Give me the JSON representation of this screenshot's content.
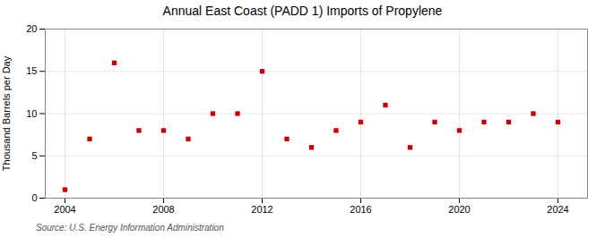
{
  "chart_data": {
    "type": "scatter",
    "title": "Annual East Coast (PADD 1) Imports of Propylene",
    "ylabel": "Thousand Barrels per Day",
    "source": "Source: U.S. Energy Information Administration",
    "x": [
      2004,
      2005,
      2006,
      2007,
      2008,
      2009,
      2010,
      2011,
      2012,
      2013,
      2014,
      2015,
      2016,
      2017,
      2018,
      2019,
      2020,
      2021,
      2022,
      2023,
      2024
    ],
    "values": [
      1.0,
      7.0,
      16.0,
      8.0,
      8.0,
      7.0,
      10.0,
      10.0,
      15.0,
      7.0,
      6.0,
      8.0,
      9.0,
      11.0,
      6.0,
      9.0,
      8.0,
      9.0,
      9.0,
      10.0,
      9.0
    ],
    "color": "#cc0000",
    "marker": "square",
    "xlim": [
      2003.2,
      2025.2
    ],
    "xticks": [
      2004,
      2008,
      2012,
      2016,
      2020,
      2024
    ],
    "ylim": [
      0,
      20
    ],
    "yticks": [
      0,
      5,
      10,
      15,
      20
    ],
    "grid": true
  }
}
